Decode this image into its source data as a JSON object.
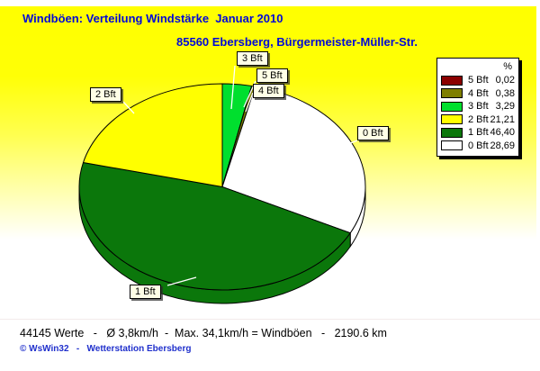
{
  "header": {
    "title": "Windböen: Verteilung Windstärke  Januar 2010",
    "subtitle": "85560 Ebersberg, Bürgermeister-Müller-Str."
  },
  "chart_data": {
    "type": "pie",
    "title": "Windböen: Verteilung Windstärke  Januar 2010",
    "subtitle": "85560 Ebersberg, Bürgermeister-Müller-Str.",
    "unit": "%",
    "legend_position": "top-right",
    "slices": [
      {
        "label": "5 Bft",
        "value": "0,02",
        "pct": 0.02,
        "color": "#8b0000"
      },
      {
        "label": "4 Bft",
        "value": "0,38",
        "pct": 0.38,
        "color": "#7e7e00"
      },
      {
        "label": "3 Bft",
        "value": "3,29",
        "pct": 3.29,
        "color": "#00df2e"
      },
      {
        "label": "2 Bft",
        "value": "21,21",
        "pct": 21.21,
        "color": "#ffff00"
      },
      {
        "label": "1 Bft",
        "value": "46,40",
        "pct": 46.4,
        "color": "#0b770b"
      },
      {
        "label": "0 Bft",
        "value": "28,69",
        "pct": 28.69,
        "color": "#ffffff"
      }
    ],
    "pie_order": [
      2,
      0,
      1,
      5,
      4,
      3
    ],
    "start_angle_deg": -90,
    "direction": "clockwise",
    "style": "3d-pie"
  },
  "footer": {
    "stats": "44145 Werte   -   Ø 3,8km/h  -  Max. 34,1km/h = Windböen   -   2190.6 km",
    "copyright": "© WsWin32   -   Wetterstation Ebersberg"
  },
  "colors": {
    "title_blue": "#0008d8",
    "background_top": "#ffff00",
    "background_bottom": "#ffffff",
    "callout_bg": "#ffffe6"
  }
}
